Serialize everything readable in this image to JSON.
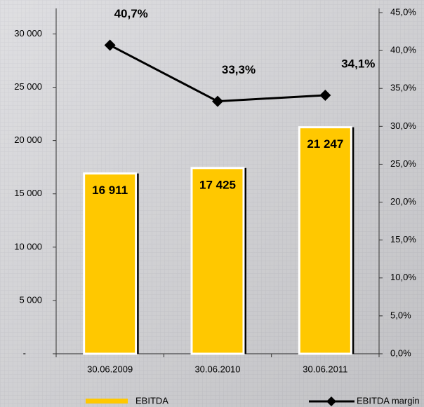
{
  "chart_data": {
    "type": "bar_line",
    "categories": [
      "30.06.2009",
      "30.06.2010",
      "30.06.2011"
    ],
    "series": [
      {
        "name": "EBITDA",
        "type": "bar",
        "color": "#ffc800",
        "values": [
          16911,
          17425,
          21247
        ],
        "value_labels": [
          "16 911",
          "17 425",
          "21 247"
        ]
      },
      {
        "name": "EBITDA margin",
        "type": "line",
        "axis": "y2",
        "color": "#000000",
        "values": [
          40.7,
          33.3,
          34.1
        ],
        "value_labels": [
          "40,7%",
          "33,3%",
          "34,1%"
        ]
      }
    ],
    "ylim": [
      0,
      32000
    ],
    "yticks": [
      {
        "value": 0,
        "label": "-"
      },
      {
        "value": 5000,
        "label": "5 000"
      },
      {
        "value": 10000,
        "label": "10 000"
      },
      {
        "value": 15000,
        "label": "15 000"
      },
      {
        "value": 20000,
        "label": "20 000"
      },
      {
        "value": 25000,
        "label": "25 000"
      },
      {
        "value": 30000,
        "label": "30 000"
      }
    ],
    "y2lim": [
      0,
      45
    ],
    "y2ticks": [
      {
        "value": 0,
        "label": "0,0%"
      },
      {
        "value": 5,
        "label": "5,0%"
      },
      {
        "value": 10,
        "label": "10,0%"
      },
      {
        "value": 15,
        "label": "15,0%"
      },
      {
        "value": 20,
        "label": "20,0%"
      },
      {
        "value": 25,
        "label": "25,0%"
      },
      {
        "value": 30,
        "label": "30,0%"
      },
      {
        "value": 35,
        "label": "35,0%"
      },
      {
        "value": 40,
        "label": "40,0%"
      },
      {
        "value": 45,
        "label": "45,0%"
      }
    ]
  }
}
